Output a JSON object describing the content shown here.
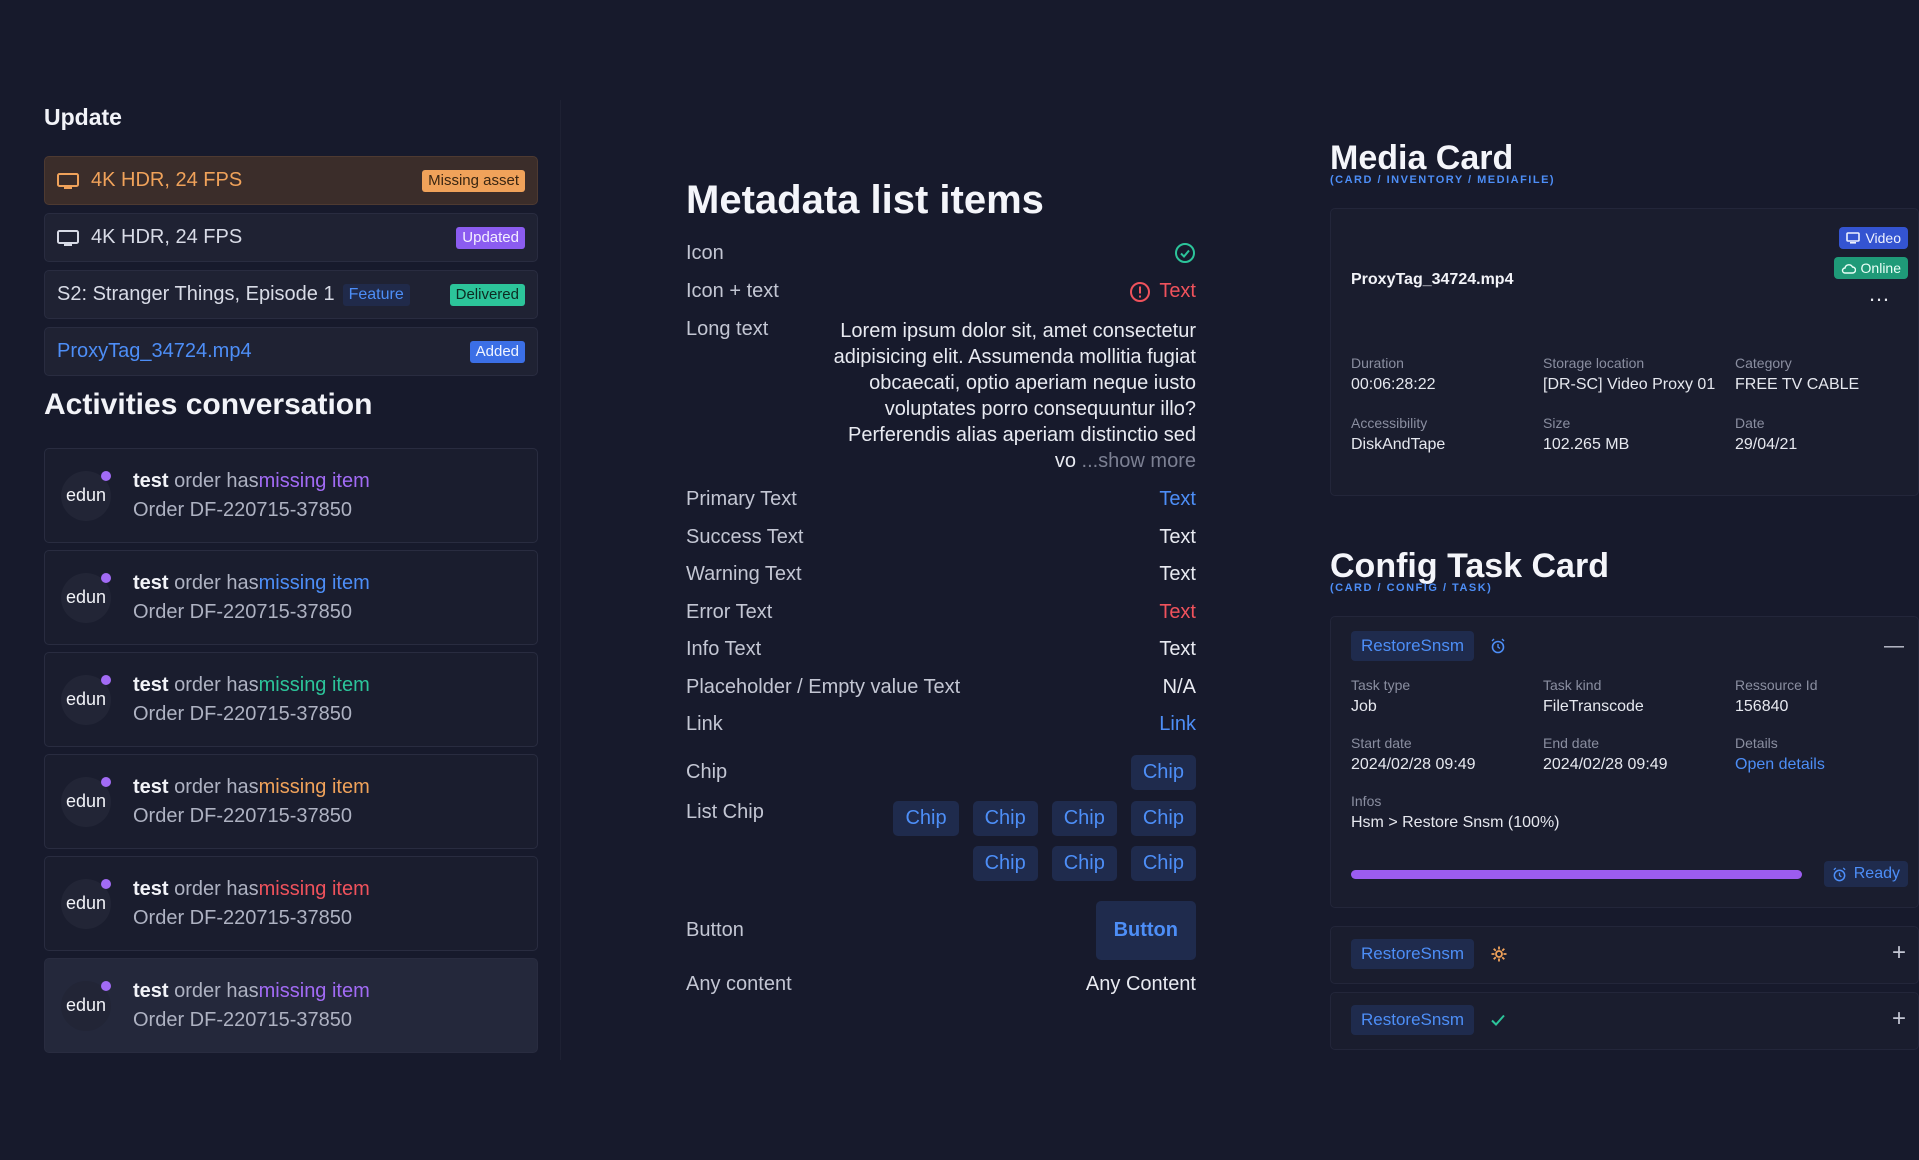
{
  "update": {
    "title": "Update",
    "rows": [
      {
        "label": "4K HDR, 24 FPS",
        "badge": "Missing asset"
      },
      {
        "label": "4K HDR, 24 FPS",
        "badge": "Updated"
      },
      {
        "label": "S2: Stranger Things, Episode 1",
        "tag": "Feature",
        "badge": "Delivered"
      },
      {
        "label": "ProxyTag_34724.mp4",
        "badge": "Added"
      }
    ]
  },
  "activities": {
    "title": "Activities conversation",
    "items": [
      {
        "avatar": "edun",
        "user": "test",
        "text": " order has",
        "highlight": "missing item",
        "color": "#a26bf5",
        "order": "Order DF-220715-37850"
      },
      {
        "avatar": "edun",
        "user": "test",
        "text": " order has",
        "highlight": "missing item",
        "color": "#4d8ef7",
        "order": "Order DF-220715-37850"
      },
      {
        "avatar": "edun",
        "user": "test",
        "text": " order has",
        "highlight": "missing item",
        "color": "#2cc49a",
        "order": "Order DF-220715-37850"
      },
      {
        "avatar": "edun",
        "user": "test",
        "text": " order has",
        "highlight": "missing item",
        "color": "#f0a25a",
        "order": "Order DF-220715-37850"
      },
      {
        "avatar": "edun",
        "user": "test",
        "text": " order has",
        "highlight": "missing item",
        "color": "#f0525c",
        "order": "Order DF-220715-37850"
      },
      {
        "avatar": "edun",
        "user": "test",
        "text": " order has",
        "highlight": "missing item",
        "color": "#a26bf5",
        "order": "Order DF-220715-37850"
      }
    ]
  },
  "metadata": {
    "title": "Metadata list items",
    "icon_label": "Icon",
    "icon_text_label": "Icon + text",
    "icon_text_value": "Text",
    "long_label": "Long text",
    "long_value": "Lorem ipsum dolor sit, amet consectetur adipisicing elit. Assumenda mollitia fugiat obcaecati, optio aperiam neque iusto voluptates porro consequuntur illo? Perferendis alias aperiam distinctio sed vo",
    "show_more": "...show more",
    "primary_label": "Primary Text",
    "primary_value": "Text",
    "success_label": "Success Text",
    "success_value": "Text",
    "warning_label": "Warning Text",
    "warning_value": "Text",
    "error_label": "Error Text",
    "error_value": "Text",
    "info_label": "Info Text",
    "info_value": "Text",
    "placeholder_label": "Placeholder / Empty value Text",
    "placeholder_value": "N/A",
    "link_label": "Link",
    "link_value": "Link",
    "chip_label": "Chip",
    "chip_value": "Chip",
    "list_chip_label": "List Chip",
    "list_chips": [
      "Chip",
      "Chip",
      "Chip",
      "Chip",
      "Chip",
      "Chip",
      "Chip"
    ],
    "button_label": "Button",
    "button_value": "Button",
    "any_label": "Any content",
    "any_value": "Any Content"
  },
  "media_card": {
    "title": "Media Card",
    "subtitle": "(CARD / INVENTORY / MEDIAFILE)",
    "filename": "ProxyTag_34724.mp4",
    "video_label": "Video",
    "online_label": "Online",
    "more": "…",
    "fields": [
      {
        "label": "Duration",
        "value": "00:06:28:22"
      },
      {
        "label": "Storage location",
        "value": "[DR-SC] Video Proxy 01"
      },
      {
        "label": "Category",
        "value": "FREE TV CABLE"
      },
      {
        "label": "Accessibility",
        "value": "DiskAndTape"
      },
      {
        "label": "Size",
        "value": "102.265 MB"
      },
      {
        "label": "Date",
        "value": "29/04/21"
      }
    ]
  },
  "config_card": {
    "title": "Config Task Card",
    "subtitle": "(CARD / CONFIG / TASK)",
    "task_name": "RestoreSnsm",
    "collapse": "—",
    "fields": [
      {
        "label": "Task type",
        "value": "Job"
      },
      {
        "label": "Task kind",
        "value": "FileTranscode"
      },
      {
        "label": "Ressource Id",
        "value": "156840"
      },
      {
        "label": "Start date",
        "value": "2024/02/28 09:49"
      },
      {
        "label": "End date",
        "value": "2024/02/28 09:49"
      },
      {
        "label": "Details",
        "value": "Open details"
      }
    ],
    "infos_label": "Infos",
    "infos_value": "Hsm > Restore Snsm (100%)",
    "progress": 1.0,
    "status": "Ready",
    "collapsed": [
      {
        "name": "RestoreSnsm",
        "expand": "+"
      },
      {
        "name": "RestoreSnsm",
        "expand": "+"
      }
    ]
  },
  "colors": {
    "primary": "#4d8ef7",
    "success": "#2cc49a",
    "warning": "#f0a25a",
    "error": "#f0525c",
    "accent": "#9c5cf0"
  }
}
